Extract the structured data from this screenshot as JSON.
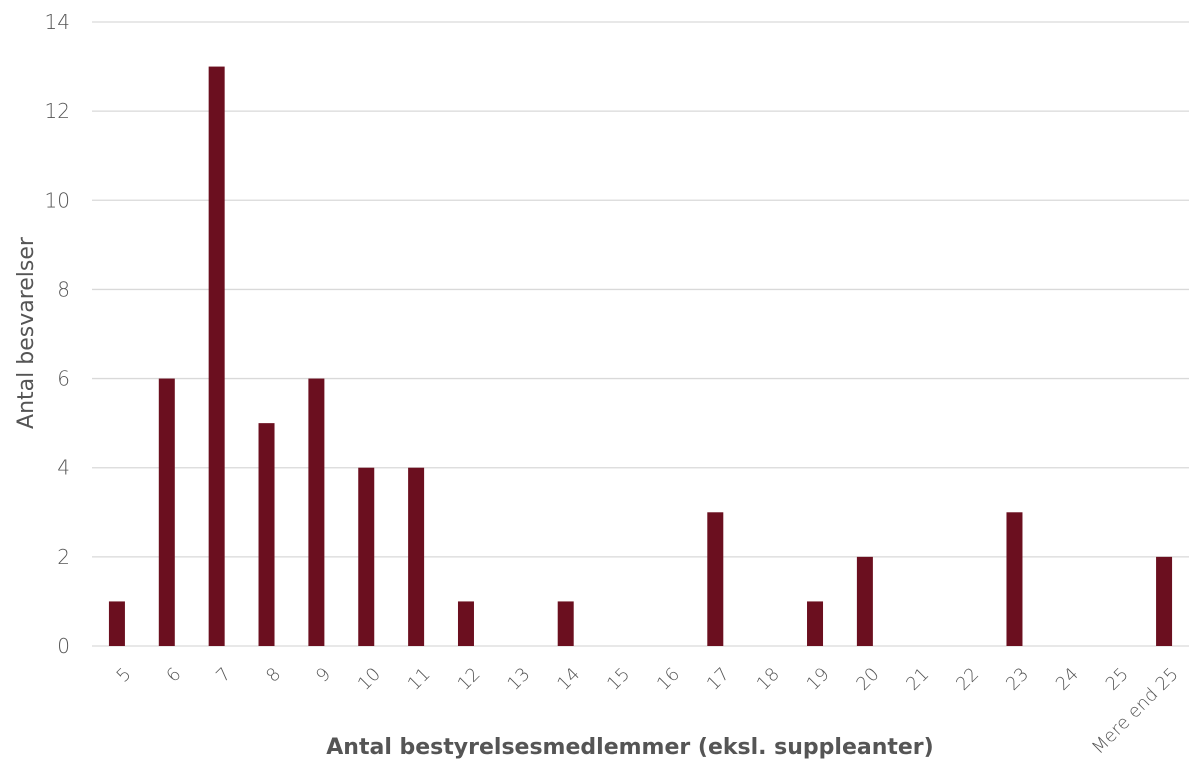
{
  "chart_data": {
    "type": "bar",
    "title": "",
    "xlabel": "Antal bestyrelsesmedlemmer (eksl. suppleanter)",
    "ylabel": "Antal besvarelser",
    "ylim": [
      0,
      14
    ],
    "yticks": [
      0,
      2,
      4,
      6,
      8,
      10,
      12,
      14
    ],
    "grid": true,
    "legend": "none",
    "bar_color": "#6b0f1f",
    "categories": [
      "5",
      "6",
      "7",
      "8",
      "9",
      "10",
      "11",
      "12",
      "13",
      "14",
      "15",
      "16",
      "17",
      "18",
      "19",
      "20",
      "21",
      "22",
      "23",
      "24",
      "25",
      "Mere end 25"
    ],
    "values": [
      1,
      6,
      13,
      5,
      6,
      4,
      4,
      1,
      0,
      1,
      0,
      0,
      3,
      0,
      1,
      2,
      0,
      0,
      3,
      0,
      0,
      2
    ]
  }
}
